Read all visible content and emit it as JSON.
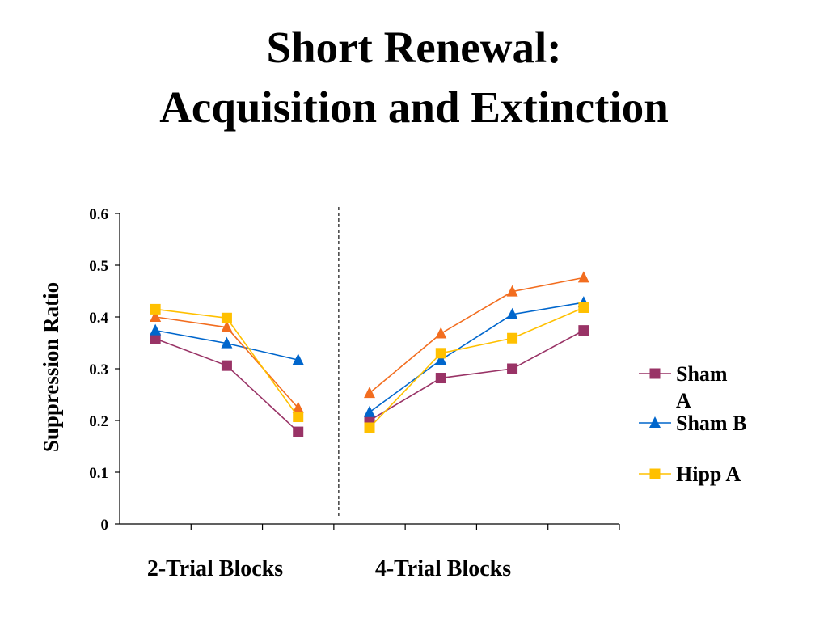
{
  "slide": {
    "title_line1": "Short Renewal:",
    "title_line2": "Acquisition and Extinction"
  },
  "chart_data": {
    "type": "line",
    "title": "Short Renewal: Acquisition and Extinction",
    "ylabel": "Suppression Ratio",
    "ylim": [
      0,
      0.6
    ],
    "yticks": [
      "0",
      "0.1",
      "0.2",
      "0.3",
      "0.4",
      "0.5",
      "0.6"
    ],
    "group_labels": [
      "2-Trial Blocks",
      "4-Trial Blocks"
    ],
    "legend_position": "right",
    "grid": false,
    "divider_between_groups": true,
    "x": [
      1,
      2,
      3,
      4,
      5,
      6,
      7
    ],
    "series": [
      {
        "name": "Sham A",
        "legend_lines": [
          "Sham",
          "A"
        ],
        "color": "#993366",
        "marker": "square",
        "in_legend": true,
        "segments": [
          [
            0.358,
            0.306,
            0.178
          ],
          [
            0.2,
            0.282,
            0.3,
            0.374
          ]
        ]
      },
      {
        "name": "Sham B",
        "legend_lines": [
          "Sham B"
        ],
        "color": "#0066CC",
        "marker": "triangle",
        "in_legend": true,
        "segments": [
          [
            0.374,
            0.349,
            0.317
          ],
          [
            0.216,
            0.317,
            0.405,
            0.428
          ]
        ]
      },
      {
        "name": "",
        "legend_lines": [],
        "color": "#F26D1F",
        "marker": "triangle",
        "in_legend": false,
        "segments": [
          [
            0.4,
            0.38,
            0.224
          ],
          [
            0.253,
            0.368,
            0.449,
            0.476
          ]
        ]
      },
      {
        "name": "Hipp A",
        "legend_lines": [
          "Hipp A"
        ],
        "color": "#FFC000",
        "marker": "square",
        "in_legend": true,
        "segments": [
          [
            0.415,
            0.398,
            0.207
          ],
          [
            0.186,
            0.33,
            0.359,
            0.418
          ]
        ]
      }
    ]
  }
}
